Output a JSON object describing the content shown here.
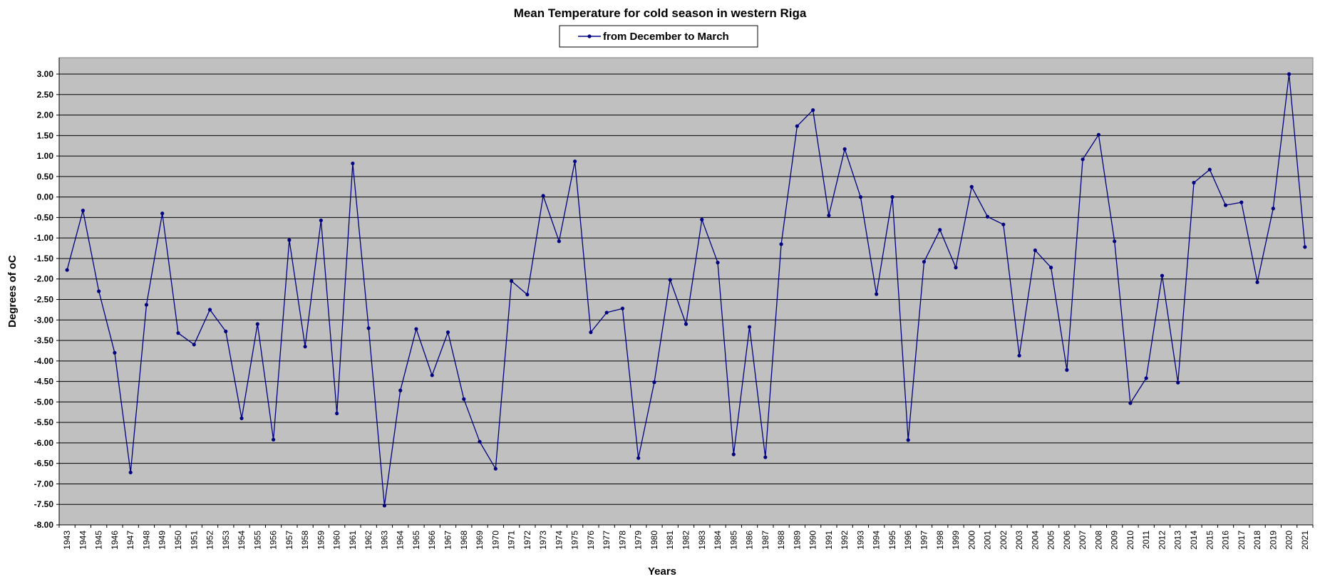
{
  "chart_data": {
    "type": "line",
    "title": "Mean Temperature for cold season in western Riga",
    "xlabel": "Years",
    "ylabel": "Degrees of  oC",
    "ylim": [
      -8,
      3
    ],
    "ytick_step": 0.5,
    "grid": true,
    "legend_position": "top-center",
    "colors": {
      "plot_background": "#c0c0c0",
      "series": "#000080",
      "grid": "#000000"
    },
    "x": [
      1943,
      1944,
      1945,
      1946,
      1947,
      1948,
      1949,
      1950,
      1951,
      1952,
      1953,
      1954,
      1955,
      1956,
      1957,
      1958,
      1959,
      1960,
      1961,
      1962,
      1963,
      1964,
      1965,
      1966,
      1967,
      1968,
      1969,
      1970,
      1971,
      1972,
      1973,
      1974,
      1975,
      1976,
      1977,
      1978,
      1979,
      1980,
      1981,
      1982,
      1983,
      1984,
      1985,
      1986,
      1987,
      1988,
      1989,
      1990,
      1991,
      1992,
      1993,
      1994,
      1995,
      1996,
      1997,
      1998,
      1999,
      2000,
      2001,
      2002,
      2003,
      2004,
      2005,
      2006,
      2007,
      2008,
      2009,
      2010,
      2011,
      2012,
      2013,
      2014,
      2015,
      2016,
      2017,
      2018,
      2019,
      2020,
      2021
    ],
    "series": [
      {
        "name": "from December to March",
        "values": [
          -1.78,
          -0.33,
          -2.3,
          -3.8,
          -6.72,
          -2.63,
          -0.4,
          -3.32,
          -3.6,
          -2.75,
          -3.28,
          -5.4,
          -3.1,
          -5.92,
          -1.05,
          -3.65,
          -0.57,
          -5.28,
          0.82,
          -3.2,
          -7.53,
          -4.72,
          -3.22,
          -4.35,
          -3.3,
          -4.93,
          -5.97,
          -6.63,
          -2.05,
          -2.38,
          0.03,
          -1.08,
          0.87,
          -3.3,
          -2.82,
          -2.72,
          -6.37,
          -4.52,
          -2.02,
          -3.1,
          -0.55,
          -1.6,
          -6.28,
          -3.17,
          -6.35,
          -1.15,
          1.73,
          2.12,
          -0.45,
          1.17,
          0.0,
          -2.37,
          0.0,
          -5.93,
          -1.58,
          -0.8,
          -1.72,
          0.25,
          -0.48,
          -0.67,
          -3.87,
          -1.3,
          -1.72,
          -4.22,
          0.92,
          1.52,
          -1.08,
          -5.03,
          -4.42,
          -1.92,
          -4.53,
          0.35,
          0.67,
          -0.2,
          -0.13,
          -2.08,
          -0.28,
          3.0,
          -1.22
        ]
      }
    ]
  }
}
